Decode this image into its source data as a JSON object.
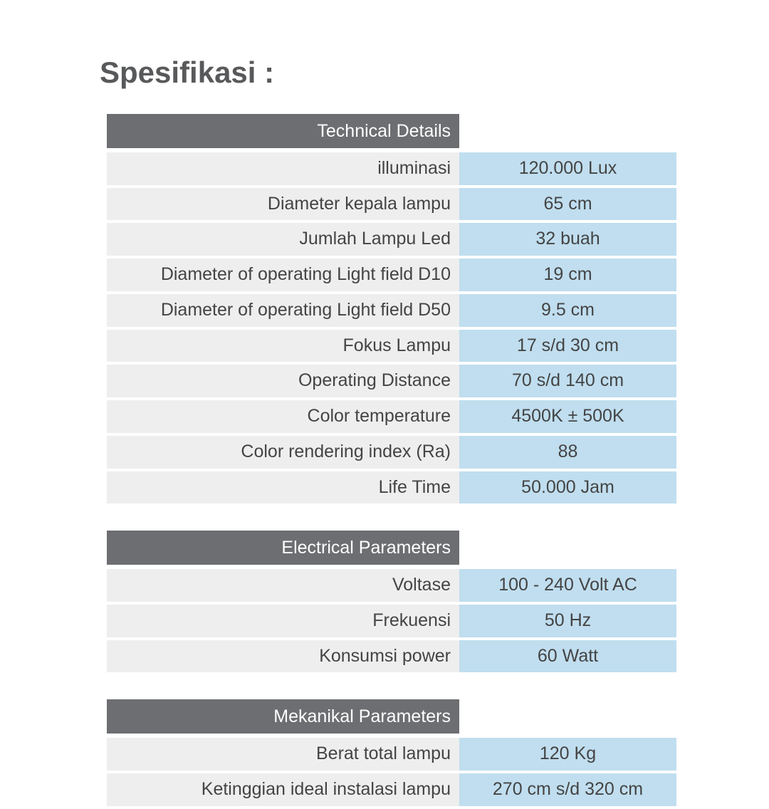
{
  "title": "Spesifikasi :",
  "style": {
    "heading_color": "#58595b",
    "header_bg": "#6d6e71",
    "header_text": "#ffffff",
    "label_bg": "#eeeeee",
    "label_text": "#444444",
    "value_bg": "#c0deef",
    "value_text": "#444444",
    "heading_fontsize": 42,
    "cell_fontsize": 25,
    "label_col_width": 495,
    "value_col_width": 305,
    "row_gap": 4
  },
  "sections": [
    {
      "header": "Technical Details",
      "rows": [
        {
          "label": "illuminasi",
          "value": "120.000 Lux"
        },
        {
          "label": "Diameter kepala lampu",
          "value": "65 cm"
        },
        {
          "label": "Jumlah Lampu Led",
          "value": "32 buah"
        },
        {
          "label": "Diameter of operating Light field D10",
          "value": "19 cm"
        },
        {
          "label": "Diameter of operating Light field D50",
          "value": "9.5 cm"
        },
        {
          "label": "Fokus Lampu",
          "value": "17 s/d 30 cm"
        },
        {
          "label": "Operating Distance",
          "value": "70 s/d 140 cm"
        },
        {
          "label": "Color temperature",
          "value": "4500K ± 500K"
        },
        {
          "label": "Color rendering  index (Ra)",
          "value": "88"
        },
        {
          "label": "Life Time",
          "value": "50.000 Jam"
        }
      ]
    },
    {
      "header": "Electrical Parameters",
      "rows": [
        {
          "label": "Voltase",
          "value": "100 - 240 Volt AC"
        },
        {
          "label": "Frekuensi",
          "value": "50 Hz"
        },
        {
          "label": "Konsumsi power",
          "value": "60 Watt"
        }
      ]
    },
    {
      "header": "Mekanikal Parameters",
      "rows": [
        {
          "label": "Berat total lampu",
          "value": "120 Kg"
        },
        {
          "label": "Ketinggian ideal instalasi lampu",
          "value": "270 cm s/d 320 cm"
        }
      ]
    }
  ]
}
